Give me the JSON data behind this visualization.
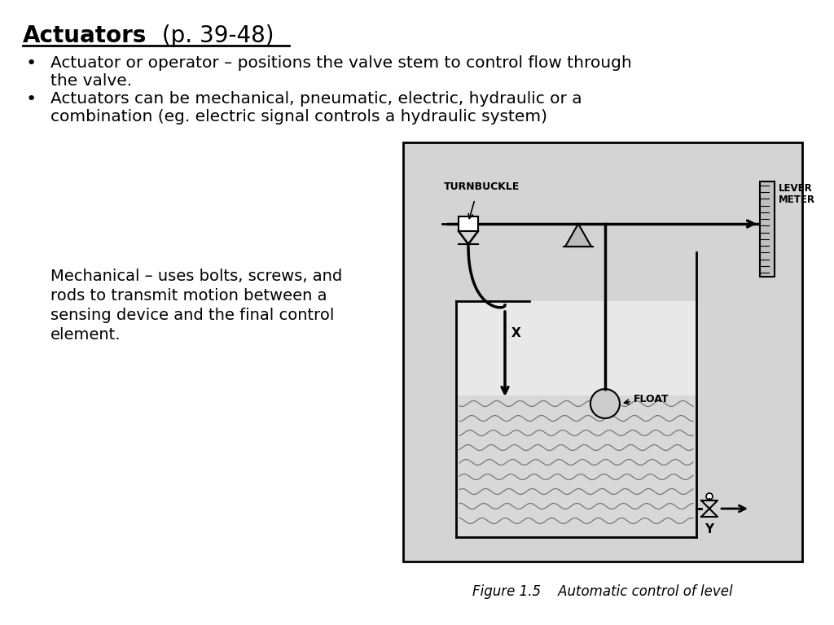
{
  "title_bold": "Actuators",
  "title_suffix": " (p. 39-48)",
  "bullet1_line1": "Actuator or operator – positions the valve stem to control flow through",
  "bullet1_line2": "the valve.",
  "bullet2_line1": "Actuators can be mechanical, pneumatic, electric, hydraulic or a",
  "bullet2_line2": "combination (eg. electric signal controls a hydraulic system)",
  "mech_line1": "Mechanical – uses bolts, screws, and",
  "mech_line2": "rods to transmit motion between a",
  "mech_line3": "sensing device and the final control",
  "mech_line4": "element.",
  "fig_caption": "Figure 1.5    Automatic control of level",
  "bg_color": "#ffffff",
  "diagram_bg": "#d4d4d4",
  "wave_color": "#999999",
  "label_turnbuckle": "TURNBUCKLE",
  "label_lever": "LEVER",
  "label_meter": "METER",
  "label_float": "FLOAT",
  "label_x": "X",
  "label_y": "Y"
}
